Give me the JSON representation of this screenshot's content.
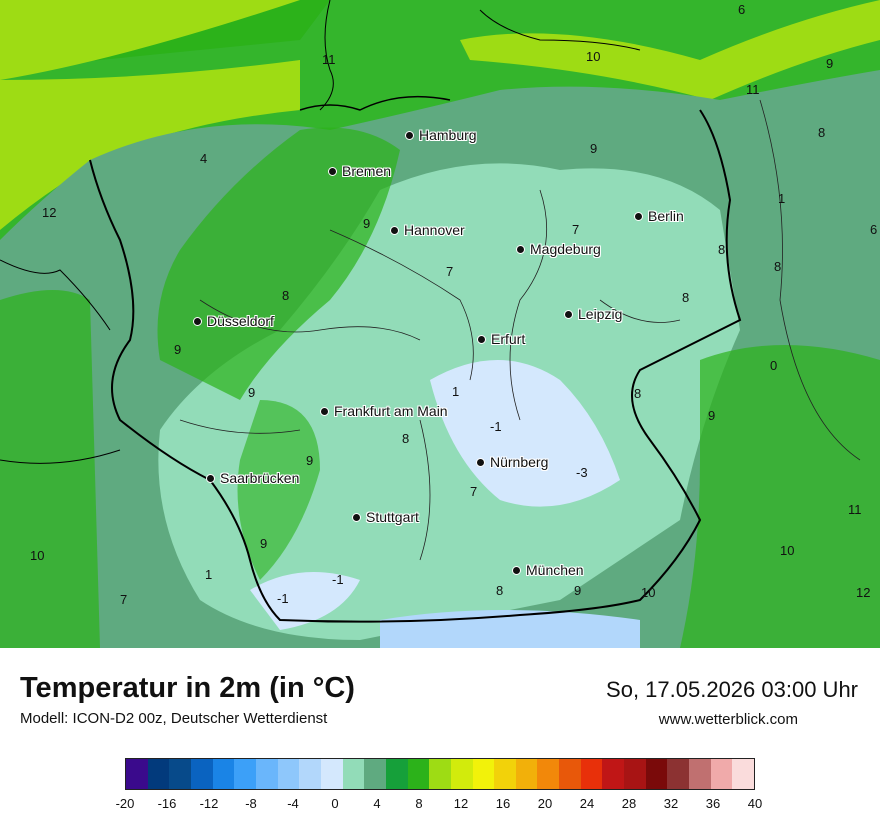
{
  "header": {
    "title": "Temperatur in 2m (in °C)",
    "model": "Modell: ICON-D2 00z, Deutscher Wetterdienst",
    "datetime": "So, 17.05.2026 03:00 Uhr",
    "website": "www.wetterblick.com"
  },
  "cities": [
    {
      "name": "Hamburg",
      "icon": "city-dot-icon"
    },
    {
      "name": "Bremen",
      "icon": "city-dot-icon"
    },
    {
      "name": "Berlin",
      "icon": "city-dot-icon"
    },
    {
      "name": "Hannover",
      "icon": "city-dot-icon"
    },
    {
      "name": "Magdeburg",
      "icon": "city-dot-icon"
    },
    {
      "name": "Düsseldorf",
      "icon": "city-dot-icon"
    },
    {
      "name": "Leipzig",
      "icon": "city-dot-icon"
    },
    {
      "name": "Erfurt",
      "icon": "city-dot-icon"
    },
    {
      "name": "Frankfurt am Main",
      "icon": "city-dot-icon"
    },
    {
      "name": "Nürnberg",
      "icon": "city-dot-icon"
    },
    {
      "name": "Saarbrücken",
      "icon": "city-dot-icon"
    },
    {
      "name": "Stuttgart",
      "icon": "city-dot-icon"
    },
    {
      "name": "München",
      "icon": "city-dot-icon"
    }
  ],
  "temperature_labels": [
    "6",
    "11",
    "10",
    "9",
    "11",
    "8",
    "1",
    "4",
    "9",
    "12",
    "9",
    "7",
    "6",
    "8",
    "8",
    "8",
    "9",
    "7",
    "8",
    "9",
    "0",
    "1",
    "8",
    "9",
    "-1",
    "-3",
    "8",
    "7",
    "9",
    "11",
    "10",
    "10",
    "9",
    "1",
    "-1",
    "-1",
    "8",
    "9",
    "10",
    "12",
    "7"
  ],
  "legend": {
    "colors": [
      "#3a0a8c",
      "#023a7c",
      "#074a8a",
      "#0a63c0",
      "#1a84e6",
      "#3ca0f8",
      "#6ab6fb",
      "#8ec7fb",
      "#b2d7fb",
      "#d4e8fd",
      "#92dcb8",
      "#5faa80",
      "#16a03a",
      "#2cb21a",
      "#9edc14",
      "#d2eb0c",
      "#f2f20a",
      "#f2d20a",
      "#f2b00a",
      "#f2880a",
      "#e8580a",
      "#e8300a",
      "#c01616",
      "#a81414",
      "#7a0a0a",
      "#8c3232",
      "#c07070",
      "#f0aaaa",
      "#fadcdc"
    ],
    "ticks": [
      "-20",
      "-16",
      "-12",
      "-8",
      "-4",
      "0",
      "4",
      "8",
      "12",
      "16",
      "20",
      "24",
      "28",
      "32",
      "36",
      "40"
    ]
  }
}
